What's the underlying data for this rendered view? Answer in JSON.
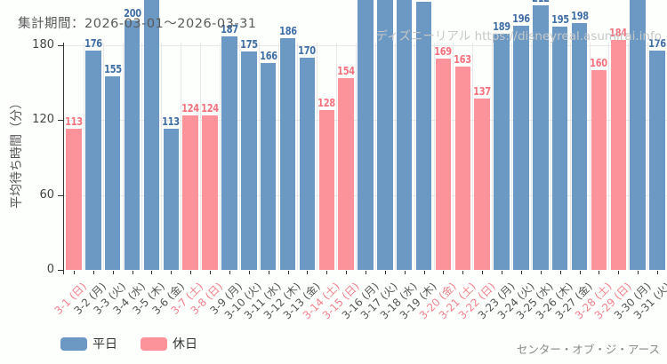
{
  "header": {
    "title": "集計期間：2026-03-01～2026-03-31"
  },
  "watermark": {
    "text": "ディズニーリアル https://disneyreal.asumirai.info"
  },
  "footer": {
    "attraction": "センター・オブ・ジ・アース"
  },
  "legend": {
    "items": [
      {
        "key": "weekday",
        "label": "平日",
        "color": "#6C99C3"
      },
      {
        "key": "holiday",
        "label": "休日",
        "color": "#FC939B"
      }
    ]
  },
  "colors": {
    "weekday_bar": "#6C99C3",
    "holiday_bar": "#FC939B",
    "weekday_value_label": "#3F6EA5",
    "holiday_value_label": "#F4727E",
    "weekday_date_label": "#555555",
    "holiday_date_label": "#F0838D",
    "axis": "#333333",
    "grid": "#E8E8E8"
  },
  "chart_data": {
    "type": "bar",
    "title": "集計期間：2026-03-01～2026-03-31",
    "xlabel": "",
    "ylabel": "平均待ち時間（分）",
    "yticks": [
      0,
      60,
      120,
      180
    ],
    "ylim": [
      0,
      216
    ],
    "grid": true,
    "legend_position": "bottom-left",
    "clipping_note": "bars taller than ~216 are clipped at the top edge of the image; their values are estimated and their labels are not visible",
    "bars": [
      {
        "category": "3-1 (日)",
        "value": 113,
        "day_type": "holiday",
        "label_shown": true,
        "estimated": false
      },
      {
        "category": "3-2 (月)",
        "value": 176,
        "day_type": "weekday",
        "label_shown": true,
        "estimated": false
      },
      {
        "category": "3-3 (火)",
        "value": 155,
        "day_type": "weekday",
        "label_shown": true,
        "estimated": false
      },
      {
        "category": "3-4 (水)",
        "value": 200,
        "day_type": "weekday",
        "label_shown": true,
        "estimated": false
      },
      {
        "category": "3-5 (木)",
        "value": 220,
        "day_type": "weekday",
        "label_shown": false,
        "estimated": true
      },
      {
        "category": "3-6 (金)",
        "value": 113,
        "day_type": "weekday",
        "label_shown": true,
        "estimated": false
      },
      {
        "category": "3-7 (土)",
        "value": 124,
        "day_type": "holiday",
        "label_shown": true,
        "estimated": false
      },
      {
        "category": "3-8 (日)",
        "value": 124,
        "day_type": "holiday",
        "label_shown": true,
        "estimated": false
      },
      {
        "category": "3-9 (月)",
        "value": 187,
        "day_type": "weekday",
        "label_shown": true,
        "estimated": false
      },
      {
        "category": "3-10 (火)",
        "value": 175,
        "day_type": "weekday",
        "label_shown": true,
        "estimated": false
      },
      {
        "category": "3-11 (水)",
        "value": 166,
        "day_type": "weekday",
        "label_shown": true,
        "estimated": false
      },
      {
        "category": "3-12 (木)",
        "value": 186,
        "day_type": "weekday",
        "label_shown": true,
        "estimated": false
      },
      {
        "category": "3-13 (金)",
        "value": 170,
        "day_type": "weekday",
        "label_shown": true,
        "estimated": false
      },
      {
        "category": "3-14 (土)",
        "value": 128,
        "day_type": "holiday",
        "label_shown": true,
        "estimated": false
      },
      {
        "category": "3-15 (日)",
        "value": 154,
        "day_type": "holiday",
        "label_shown": true,
        "estimated": false
      },
      {
        "category": "3-16 (月)",
        "value": 230,
        "day_type": "weekday",
        "label_shown": false,
        "estimated": true
      },
      {
        "category": "3-17 (火)",
        "value": 228,
        "day_type": "weekday",
        "label_shown": false,
        "estimated": true
      },
      {
        "category": "3-18 (水)",
        "value": 226,
        "day_type": "weekday",
        "label_shown": false,
        "estimated": true
      },
      {
        "category": "3-19 (木)",
        "value": 215,
        "day_type": "weekday",
        "label_shown": false,
        "estimated": true
      },
      {
        "category": "3-20 (金)",
        "value": 169,
        "day_type": "holiday",
        "label_shown": true,
        "estimated": false
      },
      {
        "category": "3-21 (土)",
        "value": 163,
        "day_type": "holiday",
        "label_shown": true,
        "estimated": false
      },
      {
        "category": "3-22 (日)",
        "value": 137,
        "day_type": "holiday",
        "label_shown": true,
        "estimated": false
      },
      {
        "category": "3-23 (月)",
        "value": 189,
        "day_type": "weekday",
        "label_shown": true,
        "estimated": false
      },
      {
        "category": "3-24 (火)",
        "value": 196,
        "day_type": "weekday",
        "label_shown": true,
        "estimated": false
      },
      {
        "category": "3-25 (水)",
        "value": 212,
        "day_type": "weekday",
        "label_shown": true,
        "estimated": false
      },
      {
        "category": "3-26 (木)",
        "value": 195,
        "day_type": "weekday",
        "label_shown": true,
        "estimated": false
      },
      {
        "category": "3-27 (金)",
        "value": 198,
        "day_type": "weekday",
        "label_shown": true,
        "estimated": false
      },
      {
        "category": "3-28 (土)",
        "value": 160,
        "day_type": "holiday",
        "label_shown": true,
        "estimated": false
      },
      {
        "category": "3-29 (日)",
        "value": 184,
        "day_type": "holiday",
        "label_shown": true,
        "estimated": false
      },
      {
        "category": "3-30 (月)",
        "value": 222,
        "day_type": "weekday",
        "label_shown": false,
        "estimated": true
      },
      {
        "category": "3-31 (火)",
        "value": 176,
        "day_type": "weekday",
        "label_shown": true,
        "estimated": false
      }
    ]
  }
}
